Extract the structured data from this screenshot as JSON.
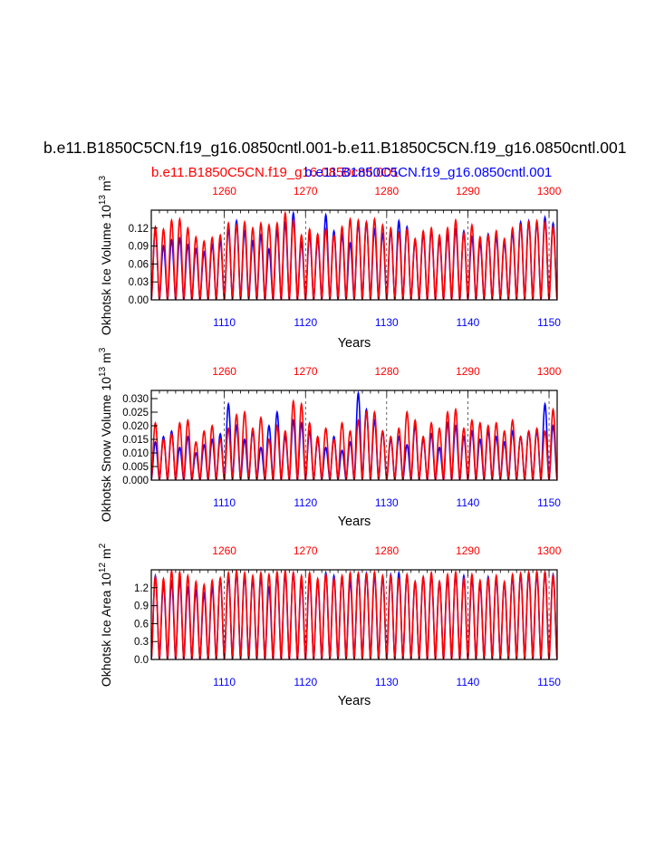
{
  "page": {
    "title": "b.e11.B1850C5CN.f19_g16.0850cntl.001-b.e11.B1850C5CN.f19_g16.0850cntl.001",
    "legend_red": "b.e11.B1850C5CN.f19_g16.0850cntl.001",
    "legend_blue": "b.e11.B1850C5CN.f19_g16.0850cntl.001"
  },
  "colors": {
    "red": "#ff0000",
    "blue": "#0000ff",
    "axis": "#000000",
    "grid": "#000000"
  },
  "chart_data": [
    {
      "type": "line",
      "ylabel": "Okhotsk Ice Volume 10^13 m^3",
      "ylabel_main": "Okhotsk Ice Volume 10",
      "ylabel_exp1": "13",
      "ylabel_unit": " m",
      "ylabel_exp2": "3",
      "xlabel": "Years",
      "ylim": [
        0,
        0.15
      ],
      "yticks": [
        "0.00",
        "0.03",
        "0.06",
        "0.09",
        "0.12"
      ],
      "ytick_values": [
        0,
        0.03,
        0.06,
        0.09,
        0.12
      ],
      "xlim": [
        1101,
        1151
      ],
      "x_bottom_ticks": [
        1110,
        1120,
        1130,
        1140,
        1150
      ],
      "x_top_ticks": [
        1260,
        1270,
        1280,
        1290,
        1300
      ],
      "series": [
        {
          "name": "b.e11.B1850C5CN.f19_g16.0850cntl.001 (red, years 1251-1300)",
          "color": "red",
          "values": [
            0.122,
            0.118,
            0.133,
            0.135,
            0.12,
            0.105,
            0.098,
            0.104,
            0.108,
            0.128,
            0.125,
            0.13,
            0.12,
            0.128,
            0.125,
            0.128,
            0.145,
            0.133,
            0.108,
            0.118,
            0.11,
            0.118,
            0.108,
            0.122,
            0.135,
            0.133,
            0.13,
            0.135,
            0.125,
            0.12,
            0.112,
            0.118,
            0.102,
            0.115,
            0.12,
            0.108,
            0.12,
            0.133,
            0.112,
            0.125,
            0.105,
            0.108,
            0.115,
            0.102,
            0.12,
            0.125,
            0.13,
            0.132,
            0.13,
            0.122
          ]
        },
        {
          "name": "b.e11.B1850C5CN.f19_g16.0850cntl.001 (blue, years 1101-1150)",
          "color": "blue",
          "values": [
            0.118,
            0.09,
            0.1,
            0.103,
            0.092,
            0.085,
            0.08,
            0.092,
            0.098,
            0.118,
            0.132,
            0.115,
            0.098,
            0.108,
            0.085,
            0.115,
            0.128,
            0.145,
            0.095,
            0.108,
            0.102,
            0.142,
            0.115,
            0.108,
            0.095,
            0.128,
            0.13,
            0.118,
            0.11,
            0.115,
            0.132,
            0.122,
            0.098,
            0.11,
            0.115,
            0.1,
            0.108,
            0.118,
            0.115,
            0.105,
            0.095,
            0.11,
            0.105,
            0.095,
            0.112,
            0.13,
            0.132,
            0.128,
            0.138,
            0.128
          ]
        }
      ]
    },
    {
      "type": "line",
      "ylabel": "Okhotsk Snow Volume 10^13 m^3",
      "ylabel_main": "Okhotsk Snow Volume 10",
      "ylabel_exp1": "13",
      "ylabel_unit": " m",
      "ylabel_exp2": "3",
      "xlabel": "Years",
      "ylim": [
        0,
        0.033
      ],
      "yticks": [
        "0.000",
        "0.005",
        "0.010",
        "0.015",
        "0.020",
        "0.025",
        "0.030"
      ],
      "ytick_values": [
        0,
        0.005,
        0.01,
        0.015,
        0.02,
        0.025,
        0.03
      ],
      "xlim": [
        1101,
        1151
      ],
      "x_bottom_ticks": [
        1110,
        1120,
        1130,
        1140,
        1150
      ],
      "x_top_ticks": [
        1260,
        1270,
        1280,
        1290,
        1300
      ],
      "series": [
        {
          "name": "b.e11.B1850C5CN.f19_g16.0850cntl.001 (red, years 1251-1300)",
          "color": "red",
          "values": [
            0.021,
            0.015,
            0.017,
            0.021,
            0.022,
            0.014,
            0.018,
            0.02,
            0.015,
            0.019,
            0.024,
            0.025,
            0.019,
            0.023,
            0.015,
            0.02,
            0.018,
            0.029,
            0.028,
            0.021,
            0.016,
            0.019,
            0.015,
            0.021,
            0.018,
            0.022,
            0.025,
            0.025,
            0.018,
            0.016,
            0.019,
            0.025,
            0.022,
            0.016,
            0.021,
            0.019,
            0.025,
            0.026,
            0.019,
            0.022,
            0.021,
            0.02,
            0.021,
            0.018,
            0.022,
            0.016,
            0.018,
            0.019,
            0.018,
            0.026
          ]
        },
        {
          "name": "b.e11.B1850C5CN.f19_g16.0850cntl.001 (blue, years 1101-1150)",
          "color": "blue",
          "values": [
            0.014,
            0.016,
            0.018,
            0.012,
            0.016,
            0.01,
            0.013,
            0.015,
            0.017,
            0.028,
            0.02,
            0.015,
            0.018,
            0.012,
            0.02,
            0.025,
            0.016,
            0.022,
            0.021,
            0.018,
            0.015,
            0.012,
            0.016,
            0.011,
            0.014,
            0.032,
            0.026,
            0.022,
            0.018,
            0.015,
            0.016,
            0.013,
            0.02,
            0.015,
            0.017,
            0.012,
            0.021,
            0.02,
            0.016,
            0.018,
            0.015,
            0.018,
            0.016,
            0.014,
            0.018,
            0.016,
            0.018,
            0.018,
            0.028,
            0.02
          ]
        }
      ]
    },
    {
      "type": "line",
      "ylabel": "Okhotsk Ice Area 10^12 m^2",
      "ylabel_main": "Okhotsk Ice Area 10",
      "ylabel_exp1": "12",
      "ylabel_unit": " m",
      "ylabel_exp2": "2",
      "xlabel": "Years",
      "ylim": [
        0,
        1.5
      ],
      "yticks": [
        "0.0",
        "0.3",
        "0.6",
        "0.9",
        "1.2"
      ],
      "ytick_values": [
        0,
        0.3,
        0.6,
        0.9,
        1.2
      ],
      "xlim": [
        1101,
        1151
      ],
      "x_bottom_ticks": [
        1110,
        1120,
        1130,
        1140,
        1150
      ],
      "x_top_ticks": [
        1260,
        1270,
        1280,
        1290,
        1300
      ],
      "series": [
        {
          "name": "b.e11.B1850C5CN.f19_g16.0850cntl.001 (red, years 1251-1300)",
          "color": "red",
          "values": [
            1.38,
            1.35,
            1.48,
            1.46,
            1.4,
            1.3,
            1.25,
            1.32,
            1.36,
            1.45,
            1.48,
            1.45,
            1.4,
            1.45,
            1.42,
            1.46,
            1.48,
            1.45,
            1.4,
            1.45,
            1.35,
            1.42,
            1.35,
            1.4,
            1.45,
            1.44,
            1.42,
            1.46,
            1.4,
            1.4,
            1.35,
            1.42,
            1.3,
            1.38,
            1.45,
            1.3,
            1.42,
            1.46,
            1.35,
            1.42,
            1.32,
            1.35,
            1.4,
            1.3,
            1.42,
            1.44,
            1.46,
            1.47,
            1.46,
            1.4
          ]
        },
        {
          "name": "b.e11.B1850C5CN.f19_g16.0850cntl.001 (blue, years 1101-1150)",
          "color": "blue",
          "values": [
            1.4,
            1.25,
            1.3,
            1.32,
            1.2,
            1.15,
            1.1,
            1.2,
            1.35,
            1.38,
            1.45,
            1.4,
            1.35,
            1.38,
            1.2,
            1.4,
            1.42,
            1.45,
            1.3,
            1.38,
            1.3,
            1.45,
            1.4,
            1.38,
            1.3,
            1.44,
            1.44,
            1.4,
            1.38,
            1.42,
            1.45,
            1.4,
            1.3,
            1.38,
            1.4,
            1.3,
            1.35,
            1.42,
            1.4,
            1.35,
            1.25,
            1.38,
            1.35,
            1.28,
            1.38,
            1.42,
            1.44,
            1.42,
            1.46,
            1.42
          ]
        }
      ]
    }
  ]
}
